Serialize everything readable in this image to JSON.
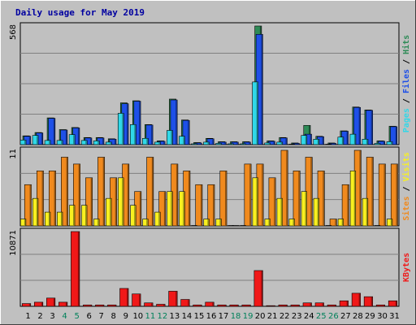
{
  "chart_data": {
    "type": "bar",
    "title": "Daily usage for May 2019",
    "categories": [
      "1",
      "2",
      "3",
      "4",
      "5",
      "6",
      "7",
      "8",
      "9",
      "10",
      "11",
      "12",
      "13",
      "14",
      "15",
      "16",
      "17",
      "18",
      "19",
      "20",
      "21",
      "22",
      "23",
      "24",
      "25",
      "26",
      "27",
      "28",
      "29",
      "30",
      "31"
    ],
    "weekend_days": [
      "4",
      "5",
      "11",
      "12",
      "18",
      "19",
      "25",
      "26"
    ],
    "panels": [
      {
        "name": "hits-files-pages",
        "ymax_label": "568",
        "ymax": 568,
        "side_label": {
          "pages": "Pages",
          "files": "Files",
          "hits": "Hits",
          "sep": " / "
        },
        "series": [
          {
            "name": "Hits",
            "color": "#2e8b57",
            "values": [
              42,
              58,
              128,
              72,
              82,
              34,
              34,
              28,
              200,
              210,
              96,
              18,
              218,
              118,
              10,
              30,
              14,
              14,
              14,
              568,
              18,
              34,
              8,
              92,
              40,
              8,
              66,
              180,
              166,
              18,
              88
            ]
          },
          {
            "name": "Files",
            "color": "#1e50e8",
            "values": [
              40,
              56,
              126,
              70,
              80,
              32,
              32,
              26,
              196,
              208,
              94,
              16,
              214,
              116,
              8,
              28,
              12,
              12,
              12,
              528,
              16,
              32,
              6,
              50,
              38,
              6,
              64,
              178,
              164,
              16,
              86
            ]
          },
          {
            "name": "Pages",
            "color": "#30d8e8",
            "values": [
              22,
              44,
              20,
              20,
              48,
              20,
              18,
              12,
              150,
              96,
              30,
              12,
              68,
              40,
              4,
              12,
              6,
              4,
              4,
              300,
              8,
              12,
              2,
              44,
              26,
              2,
              36,
              50,
              26,
              6,
              14
            ]
          }
        ]
      },
      {
        "name": "sites-visits",
        "ymax_label": "11",
        "ymax": 11,
        "side_label": {
          "sites": "Sites",
          "visits": "Visits",
          "sep": " / "
        },
        "series": [
          {
            "name": "Visits",
            "color": "#f08a1e",
            "values": [
              6,
              8,
              8,
              10,
              9,
              7,
              10,
              7,
              9,
              5,
              10,
              5,
              9,
              8,
              6,
              6,
              8,
              0,
              9,
              9,
              7,
              11,
              8,
              10,
              8,
              1,
              6,
              11,
              10,
              9,
              9
            ]
          },
          {
            "name": "Sites",
            "color": "#f8f020",
            "values": [
              1,
              4,
              2,
              2,
              3,
              3,
              1,
              4,
              7,
              3,
              1,
              2,
              5,
              5,
              0,
              1,
              1,
              0,
              0,
              7,
              1,
              4,
              1,
              5,
              4,
              0,
              1,
              8,
              4,
              0,
              1
            ]
          }
        ]
      },
      {
        "name": "kbytes",
        "ymax_label": "10871",
        "ymax": 10871,
        "side_label": {
          "kbytes": "KBytes"
        },
        "series": [
          {
            "name": "KBytes",
            "color": "#f01818",
            "values": [
              400,
              600,
              1200,
              600,
              10871,
              200,
              200,
              200,
              2600,
              1800,
              500,
              300,
              2200,
              1000,
              200,
              600,
              200,
              200,
              200,
              5200,
              100,
              200,
              200,
              500,
              500,
              200,
              800,
              1900,
              1400,
              200,
              800
            ]
          }
        ]
      }
    ]
  },
  "colors": {
    "background": "#c0c0c0",
    "plot": "#c0c0c0",
    "gridline": "#808080",
    "weekday_label": "#000000",
    "weekend_label": "#00805a",
    "title": "#0000a0"
  }
}
